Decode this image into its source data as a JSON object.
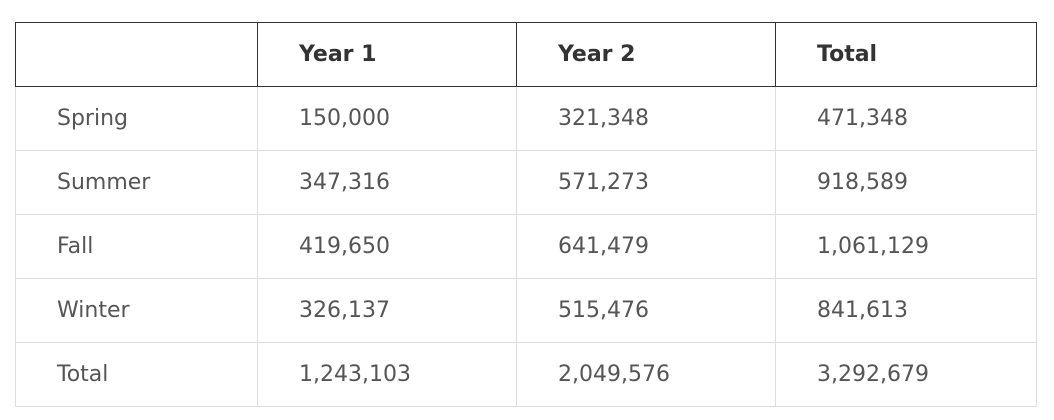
{
  "table": {
    "headers": [
      "",
      "Year 1",
      "Year 2",
      "Total"
    ],
    "rows": [
      [
        "Spring",
        "150,000",
        "321,348",
        "471,348"
      ],
      [
        "Summer",
        "347,316",
        "571,273",
        "918,589"
      ],
      [
        "Fall",
        "419,650",
        "641,479",
        "1,061,129"
      ],
      [
        "Winter",
        "326,137",
        "515,476",
        "841,613"
      ],
      [
        "Total",
        "1,243,103",
        "2,049,576",
        "3,292,679"
      ]
    ]
  },
  "colors": {
    "header_border": "#333333",
    "cell_border": "#dddddd",
    "header_text": "#333333",
    "cell_text": "#555555"
  }
}
